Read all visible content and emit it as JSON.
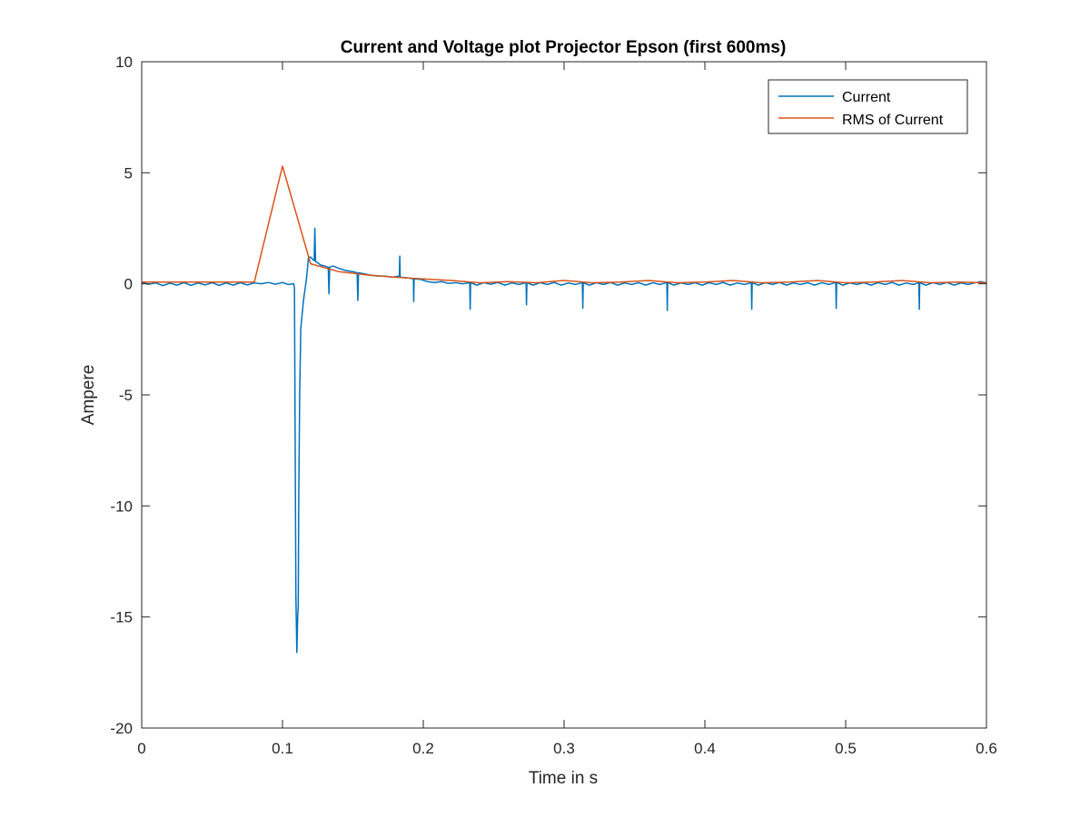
{
  "chart_data": {
    "type": "line",
    "title": "Current and Voltage plot Projector Epson (first 600ms)",
    "xlabel": "Time in s",
    "ylabel": "Ampere",
    "xlim": [
      0,
      0.6
    ],
    "ylim": [
      -20,
      10
    ],
    "xticks": [
      0,
      0.1,
      0.2,
      0.3,
      0.4,
      0.5,
      0.6
    ],
    "xtick_labels": [
      "0",
      "0.1",
      "0.2",
      "0.3",
      "0.4",
      "0.5",
      "0.6"
    ],
    "yticks": [
      -20,
      -15,
      -10,
      -5,
      0,
      5,
      10
    ],
    "ytick_labels": [
      "-20",
      "-15",
      "-10",
      "-5",
      "0",
      "5",
      "10"
    ],
    "grid": false,
    "box": true,
    "legend_position": "top-right",
    "series": [
      {
        "name": "Current",
        "color": "#0072bd",
        "points": [
          [
            0,
            0.05
          ],
          [
            0.005,
            -0.02
          ],
          [
            0.01,
            0.04
          ],
          [
            0.015,
            -0.08
          ],
          [
            0.02,
            0.03
          ],
          [
            0.025,
            -0.06
          ],
          [
            0.03,
            0.05
          ],
          [
            0.035,
            -0.07
          ],
          [
            0.04,
            0.04
          ],
          [
            0.045,
            -0.05
          ],
          [
            0.05,
            0.05
          ],
          [
            0.055,
            -0.07
          ],
          [
            0.06,
            0.04
          ],
          [
            0.065,
            -0.06
          ],
          [
            0.07,
            0.05
          ],
          [
            0.075,
            -0.05
          ],
          [
            0.08,
            0.04
          ],
          [
            0.085,
            0.0
          ],
          [
            0.09,
            0.06
          ],
          [
            0.095,
            -0.02
          ],
          [
            0.1,
            0.06
          ],
          [
            0.104,
            -0.03
          ],
          [
            0.108,
            0.0
          ],
          [
            0.1085,
            -0.2
          ],
          [
            0.1095,
            -14.0
          ],
          [
            0.1102,
            -16.6
          ],
          [
            0.1108,
            -15.0
          ],
          [
            0.1112,
            -14.5
          ],
          [
            0.1115,
            -10.0
          ],
          [
            0.1122,
            -5.0
          ],
          [
            0.113,
            -2.0
          ],
          [
            0.115,
            -0.7
          ],
          [
            0.117,
            0.2
          ],
          [
            0.1185,
            1.2
          ],
          [
            0.12,
            1.2
          ],
          [
            0.1215,
            1.1
          ],
          [
            0.1225,
            1.05
          ],
          [
            0.123,
            2.5
          ],
          [
            0.1235,
            1.0
          ],
          [
            0.125,
            0.95
          ],
          [
            0.127,
            0.85
          ],
          [
            0.13,
            0.8
          ],
          [
            0.1325,
            0.75
          ],
          [
            0.133,
            -0.45
          ],
          [
            0.1335,
            0.75
          ],
          [
            0.136,
            0.8
          ],
          [
            0.14,
            0.7
          ],
          [
            0.145,
            0.6
          ],
          [
            0.15,
            0.55
          ],
          [
            0.153,
            0.5
          ],
          [
            0.1535,
            -0.75
          ],
          [
            0.154,
            0.5
          ],
          [
            0.158,
            0.45
          ],
          [
            0.163,
            0.38
          ],
          [
            0.168,
            0.35
          ],
          [
            0.173,
            0.35
          ],
          [
            0.178,
            0.3
          ],
          [
            0.183,
            0.35
          ],
          [
            0.1833,
            1.25
          ],
          [
            0.1836,
            0.3
          ],
          [
            0.188,
            0.28
          ],
          [
            0.193,
            0.22
          ],
          [
            0.1932,
            -0.8
          ],
          [
            0.1935,
            0.22
          ],
          [
            0.198,
            0.2
          ],
          [
            0.203,
            0.1
          ],
          [
            0.208,
            0.06
          ],
          [
            0.213,
            0.1
          ],
          [
            0.218,
            0.02
          ],
          [
            0.223,
            0.05
          ],
          [
            0.228,
            0.0
          ],
          [
            0.233,
            0.05
          ],
          [
            0.2333,
            -1.15
          ],
          [
            0.2336,
            0.05
          ],
          [
            0.238,
            -0.06
          ],
          [
            0.243,
            0.05
          ],
          [
            0.248,
            -0.02
          ],
          [
            0.253,
            0.06
          ],
          [
            0.258,
            -0.06
          ],
          [
            0.263,
            0.04
          ],
          [
            0.268,
            -0.03
          ],
          [
            0.273,
            0.05
          ],
          [
            0.2733,
            -0.95
          ],
          [
            0.2736,
            0.05
          ],
          [
            0.278,
            -0.06
          ],
          [
            0.283,
            0.05
          ],
          [
            0.288,
            -0.03
          ],
          [
            0.293,
            0.06
          ],
          [
            0.298,
            -0.06
          ],
          [
            0.303,
            0.04
          ],
          [
            0.308,
            -0.03
          ],
          [
            0.313,
            0.05
          ],
          [
            0.3133,
            -1.1
          ],
          [
            0.3136,
            0.05
          ],
          [
            0.318,
            -0.06
          ],
          [
            0.323,
            0.05
          ],
          [
            0.328,
            -0.03
          ],
          [
            0.333,
            0.06
          ],
          [
            0.338,
            -0.06
          ],
          [
            0.343,
            0.04
          ],
          [
            0.348,
            -0.03
          ],
          [
            0.353,
            0.05
          ],
          [
            0.358,
            -0.06
          ],
          [
            0.363,
            0.05
          ],
          [
            0.368,
            -0.03
          ],
          [
            0.373,
            0.06
          ],
          [
            0.3733,
            -1.2
          ],
          [
            0.3736,
            0.06
          ],
          [
            0.378,
            -0.06
          ],
          [
            0.383,
            0.04
          ],
          [
            0.388,
            -0.03
          ],
          [
            0.393,
            0.05
          ],
          [
            0.398,
            -0.06
          ],
          [
            0.403,
            0.05
          ],
          [
            0.408,
            -0.03
          ],
          [
            0.413,
            0.06
          ],
          [
            0.418,
            -0.06
          ],
          [
            0.423,
            0.04
          ],
          [
            0.428,
            -0.03
          ],
          [
            0.433,
            0.05
          ],
          [
            0.4333,
            -1.15
          ],
          [
            0.4336,
            0.05
          ],
          [
            0.438,
            -0.06
          ],
          [
            0.443,
            0.05
          ],
          [
            0.448,
            -0.03
          ],
          [
            0.453,
            0.06
          ],
          [
            0.458,
            -0.06
          ],
          [
            0.463,
            0.04
          ],
          [
            0.468,
            -0.03
          ],
          [
            0.473,
            0.05
          ],
          [
            0.478,
            -0.06
          ],
          [
            0.483,
            0.05
          ],
          [
            0.488,
            -0.03
          ],
          [
            0.493,
            0.06
          ],
          [
            0.4933,
            -1.1
          ],
          [
            0.4936,
            0.06
          ],
          [
            0.498,
            -0.06
          ],
          [
            0.503,
            0.04
          ],
          [
            0.508,
            -0.03
          ],
          [
            0.513,
            0.05
          ],
          [
            0.518,
            -0.06
          ],
          [
            0.523,
            0.05
          ],
          [
            0.528,
            -0.03
          ],
          [
            0.533,
            0.06
          ],
          [
            0.538,
            -0.06
          ],
          [
            0.543,
            0.04
          ],
          [
            0.548,
            -0.03
          ],
          [
            0.552,
            0.05
          ],
          [
            0.5523,
            -1.15
          ],
          [
            0.5526,
            0.05
          ],
          [
            0.557,
            -0.06
          ],
          [
            0.562,
            0.05
          ],
          [
            0.567,
            -0.03
          ],
          [
            0.572,
            0.06
          ],
          [
            0.577,
            -0.06
          ],
          [
            0.582,
            0.04
          ],
          [
            0.587,
            -0.03
          ],
          [
            0.592,
            0.05
          ],
          [
            0.596,
            0.1
          ],
          [
            0.6,
            0.05
          ]
        ]
      },
      {
        "name": "RMS of Current",
        "color": "#d95319",
        "points": [
          [
            0,
            0.08
          ],
          [
            0.02,
            0.08
          ],
          [
            0.04,
            0.08
          ],
          [
            0.06,
            0.08
          ],
          [
            0.08,
            0.08
          ],
          [
            0.1,
            5.3
          ],
          [
            0.12,
            0.9
          ],
          [
            0.14,
            0.55
          ],
          [
            0.16,
            0.4
          ],
          [
            0.18,
            0.3
          ],
          [
            0.2,
            0.22
          ],
          [
            0.22,
            0.15
          ],
          [
            0.24,
            0.05
          ],
          [
            0.26,
            0.1
          ],
          [
            0.28,
            0.05
          ],
          [
            0.3,
            0.15
          ],
          [
            0.32,
            0.05
          ],
          [
            0.34,
            0.08
          ],
          [
            0.36,
            0.15
          ],
          [
            0.38,
            0.05
          ],
          [
            0.4,
            0.08
          ],
          [
            0.42,
            0.15
          ],
          [
            0.44,
            0.05
          ],
          [
            0.46,
            0.08
          ],
          [
            0.48,
            0.15
          ],
          [
            0.5,
            0.05
          ],
          [
            0.52,
            0.08
          ],
          [
            0.54,
            0.15
          ],
          [
            0.56,
            0.05
          ],
          [
            0.58,
            0.08
          ],
          [
            0.6,
            0.05
          ]
        ]
      }
    ]
  }
}
